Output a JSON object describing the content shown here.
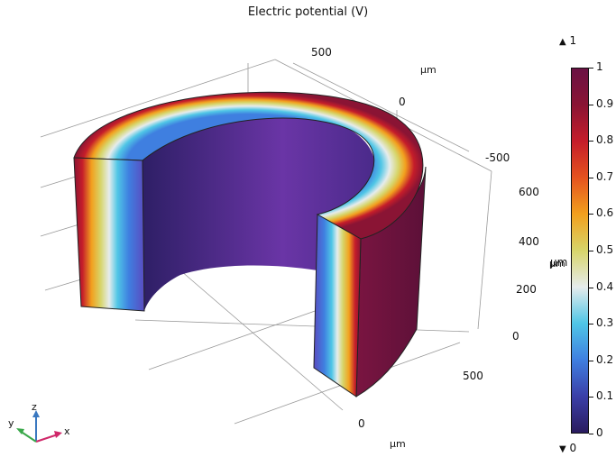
{
  "title": "Electric potential (V)",
  "chart_data": {
    "type": "surface-3d",
    "title": "Electric potential (V)",
    "x_axis": {
      "unit": "µm",
      "ticks": [
        "0",
        "500"
      ]
    },
    "y_axis": {
      "unit": "µm",
      "ticks": [
        "500",
        "0",
        "-500"
      ]
    },
    "z_axis": {
      "unit": "µm",
      "ticks": [
        "0",
        "200",
        "400",
        "600"
      ]
    },
    "colorbar": {
      "min": 0,
      "max": 1,
      "ticks": [
        "0",
        "0.1",
        "0.2",
        "0.3",
        "0.4",
        "0.5",
        "0.6",
        "0.7",
        "0.8",
        "0.9",
        "1"
      ],
      "label": "µm",
      "max_indicator": "1",
      "min_indicator": "0",
      "colormap": [
        "#2a1b5e",
        "#3b3fa8",
        "#3f7fe0",
        "#4fc6e6",
        "#e6ecec",
        "#d7d56a",
        "#f2a01e",
        "#e5531f",
        "#c51d2a",
        "#8a1434",
        "#6a1244"
      ]
    },
    "grid": true,
    "geometry": "half-annulus cylinder (cut-away)"
  },
  "triad": {
    "x": "x",
    "y": "y",
    "z": "z"
  }
}
